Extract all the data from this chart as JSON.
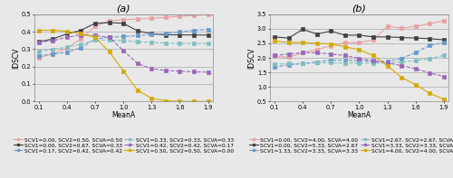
{
  "x": [
    0.1,
    0.25,
    0.4,
    0.55,
    0.7,
    0.85,
    1.0,
    1.15,
    1.3,
    1.45,
    1.6,
    1.75,
    1.9
  ],
  "subplot_a": {
    "title": "(a)",
    "xlabel": "MeanA",
    "ylabel": "IDSCV",
    "ylim": [
      0,
      0.5
    ],
    "yticks": [
      0,
      0.1,
      0.2,
      0.3,
      0.4,
      0.5
    ],
    "series": [
      {
        "label": "SCV1=0.00, SCV2=0.50, SCVA=0.50",
        "color": "#e8a0a0",
        "style": "-",
        "marker": "s",
        "markersize": 2.5,
        "values": [
          0.252,
          0.272,
          0.305,
          0.36,
          0.43,
          0.462,
          0.468,
          0.473,
          0.477,
          0.482,
          0.488,
          0.493,
          0.498
        ]
      },
      {
        "label": "SCV1=0.00, SCV2=0.67, SCVA=0.33",
        "color": "#404040",
        "style": "-",
        "marker": "s",
        "markersize": 2.5,
        "values": [
          0.342,
          0.358,
          0.388,
          0.408,
          0.448,
          0.452,
          0.448,
          0.405,
          0.388,
          0.382,
          0.382,
          0.381,
          0.381
        ]
      },
      {
        "label": "SCV1=0.17, SCV2=0.42, SCVA=0.42",
        "color": "#6699cc",
        "style": "--",
        "marker": "s",
        "markersize": 2.5,
        "values": [
          0.262,
          0.272,
          0.282,
          0.308,
          0.358,
          0.368,
          0.372,
          0.378,
          0.383,
          0.39,
          0.398,
          0.408,
          0.413
        ]
      },
      {
        "label": "SCV1=0.33, SCV2=0.33, SCVA=0.33",
        "color": "#7fbfbf",
        "style": "--",
        "marker": "s",
        "markersize": 2.5,
        "values": [
          0.288,
          0.298,
          0.312,
          0.328,
          0.352,
          0.352,
          0.348,
          0.342,
          0.338,
          0.334,
          0.332,
          0.332,
          0.332
        ]
      },
      {
        "label": "SCV1=0.42, SCV2=0.42, SCVA=0.17",
        "color": "#9966bb",
        "style": "--",
        "marker": "s",
        "markersize": 2.5,
        "values": [
          0.34,
          0.348,
          0.368,
          0.382,
          0.378,
          0.368,
          0.292,
          0.218,
          0.188,
          0.178,
          0.173,
          0.17,
          0.168
        ]
      },
      {
        "label": "SCV1=0.50, SCV2=0.50, SCVA=0.00",
        "color": "#d4aa00",
        "style": "-",
        "marker": "s",
        "markersize": 2.5,
        "values": [
          0.408,
          0.408,
          0.402,
          0.388,
          0.368,
          0.285,
          0.175,
          0.065,
          0.018,
          0.004,
          0.001,
          0.0,
          0.0
        ]
      }
    ]
  },
  "subplot_b": {
    "title": "(b)",
    "xlabel": "MeanA",
    "ylabel": "IDSCV",
    "ylim": [
      0.5,
      3.5
    ],
    "yticks": [
      0.5,
      1.0,
      1.5,
      2.0,
      2.5,
      3.0,
      3.5
    ],
    "series": [
      {
        "label": "SCV1=0.00, SCV2=4.00, SCVA=4.00",
        "color": "#e8a0a0",
        "style": "-",
        "marker": "s",
        "markersize": 2.5,
        "values": [
          2.05,
          2.02,
          2.18,
          2.28,
          2.42,
          2.52,
          2.52,
          2.62,
          3.08,
          3.02,
          3.08,
          3.18,
          3.28
        ]
      },
      {
        "label": "SCV1=0.00, SCV2=5.33, SCVA=2.67",
        "color": "#404040",
        "style": "-",
        "marker": "s",
        "markersize": 2.5,
        "values": [
          2.72,
          2.68,
          2.98,
          2.82,
          2.92,
          2.78,
          2.78,
          2.72,
          2.72,
          2.7,
          2.68,
          2.66,
          2.62
        ]
      },
      {
        "label": "SCV1=1.33, SCV2=3.33, SCVA=3.33",
        "color": "#6699cc",
        "style": "--",
        "marker": "s",
        "markersize": 2.5,
        "values": [
          1.68,
          1.76,
          1.8,
          1.86,
          1.92,
          1.92,
          1.9,
          1.88,
          1.88,
          1.98,
          2.18,
          2.43,
          2.52
        ]
      },
      {
        "label": "SCV1=2.67, SCV2=2.67, SCVA=2.67",
        "color": "#7fbfbf",
        "style": "--",
        "marker": "s",
        "markersize": 2.5,
        "values": [
          1.78,
          1.8,
          1.8,
          1.83,
          1.83,
          1.82,
          1.82,
          1.82,
          1.83,
          1.86,
          1.9,
          1.98,
          2.08
        ]
      },
      {
        "label": "SCV1=3.33, SCV2=3.33, SCVA=1.33",
        "color": "#9966bb",
        "style": "--",
        "marker": "s",
        "markersize": 2.5,
        "values": [
          2.08,
          2.13,
          2.18,
          2.18,
          2.13,
          2.08,
          1.98,
          1.9,
          1.83,
          1.73,
          1.63,
          1.48,
          1.36
        ]
      },
      {
        "label": "SCV1=4.00, SCV2=4.00, SCVA=0.00",
        "color": "#d4aa00",
        "style": "-",
        "marker": "s",
        "markersize": 2.5,
        "values": [
          2.58,
          2.53,
          2.53,
          2.5,
          2.48,
          2.38,
          2.28,
          2.08,
          1.73,
          1.33,
          1.08,
          0.78,
          0.58
        ]
      }
    ]
  },
  "legend_fontsize": 4.2,
  "axis_fontsize": 5.5,
  "tick_fontsize": 4.8,
  "title_fontsize": 8,
  "bg_color": "#e8e8e8"
}
